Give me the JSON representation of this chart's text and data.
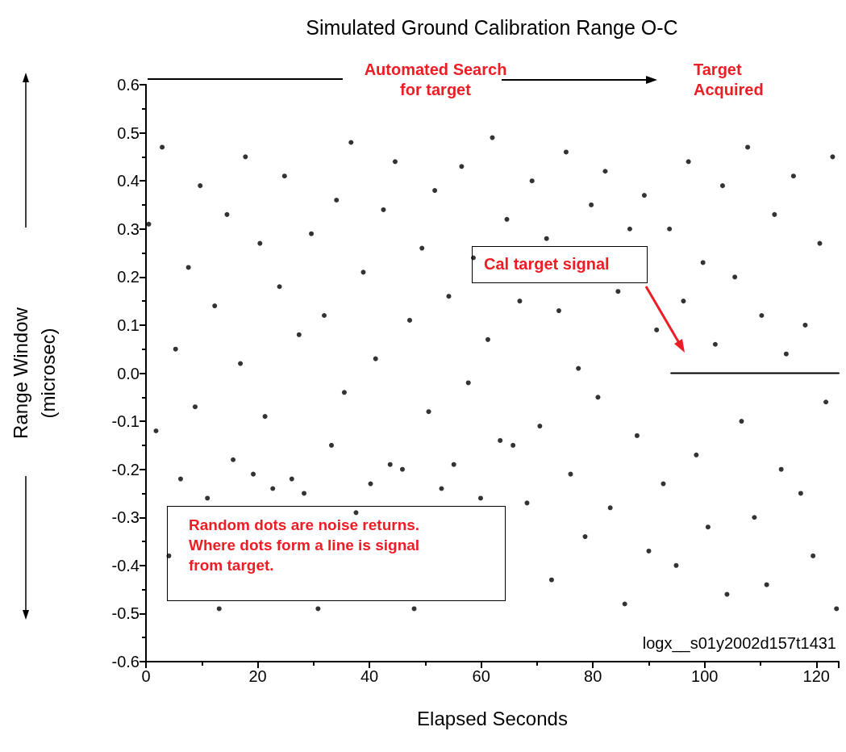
{
  "chart_data": {
    "type": "scatter",
    "title": "Simulated Ground Calibration Range O-C",
    "xlabel": "Elapsed Seconds",
    "ylabel": "Range Window\n(microsec)",
    "xlim": [
      0,
      124
    ],
    "xticks": [
      0,
      20,
      40,
      60,
      80,
      100,
      120
    ],
    "ylim": [
      -0.6,
      0.6
    ],
    "yticks": [
      -0.6,
      -0.5,
      -0.4,
      -0.3,
      -0.2,
      -0.1,
      {
        "value": 0,
        "label": "0.0"
      },
      0.1,
      0.2,
      0.3,
      0.4,
      0.5,
      0.6
    ],
    "line_style": "solid",
    "annotations": [
      "Automated Search for target",
      "Target Acquired",
      "Cal target signal",
      "Random dots are noise returns. Where dots form a line is signal from target.",
      "logx__s01y2002d157t1431"
    ],
    "series": [
      {
        "type": "scatter",
        "color": "#000000",
        "marker": "circle",
        "x": [
          0.5,
          1.8,
          2.9,
          4.1,
          5.3,
          6.2,
          7.6,
          8.8,
          9.7,
          11.0,
          12.3,
          13.1,
          14.5,
          15.6,
          16.9,
          17.8,
          19.2,
          20.4,
          21.3,
          22.7,
          23.9,
          24.8,
          26.1,
          27.4,
          28.3,
          29.6,
          30.8,
          31.9,
          33.2,
          34.1,
          35.5,
          36.7,
          37.6,
          38.9,
          40.2,
          41.1,
          42.5,
          43.7,
          44.6,
          45.9,
          47.2,
          48.0,
          49.4,
          50.6,
          51.7,
          52.9,
          54.2,
          55.1,
          56.5,
          57.7,
          58.6,
          59.9,
          61.2,
          62.0,
          63.4,
          64.6,
          65.7,
          66.9,
          68.2,
          69.1,
          70.5,
          71.7,
          72.6,
          73.9,
          75.2,
          76.0,
          77.4,
          78.6,
          79.7,
          80.9,
          82.2,
          83.1,
          84.5,
          85.7,
          86.6,
          87.9,
          89.2,
          90.0,
          91.4,
          92.6,
          93.7,
          94.9,
          96.2,
          97.1,
          98.5,
          99.7,
          100.6,
          101.9,
          103.2,
          104.0,
          105.4,
          106.6,
          107.7,
          108.9,
          110.2,
          111.1,
          112.5,
          113.7,
          114.6,
          115.9,
          117.2,
          118.0,
          119.4,
          120.6,
          121.7,
          122.9,
          123.6
        ],
        "values": [
          0.31,
          -0.12,
          0.47,
          -0.38,
          0.05,
          -0.22,
          0.22,
          -0.07,
          0.39,
          -0.26,
          0.14,
          -0.49,
          0.33,
          -0.18,
          0.02,
          0.45,
          -0.21,
          0.27,
          -0.09,
          -0.24,
          0.18,
          0.41,
          -0.22,
          0.08,
          -0.25,
          0.29,
          -0.49,
          0.12,
          -0.15,
          0.36,
          -0.04,
          0.48,
          -0.29,
          0.21,
          -0.23,
          0.03,
          0.34,
          -0.19,
          0.44,
          -0.2,
          0.11,
          -0.49,
          0.26,
          -0.08,
          0.38,
          -0.24,
          0.16,
          -0.19,
          0.43,
          -0.02,
          0.24,
          -0.26,
          0.07,
          0.49,
          -0.14,
          0.32,
          -0.15,
          0.15,
          -0.27,
          0.4,
          -0.11,
          0.28,
          -0.43,
          0.13,
          0.46,
          -0.21,
          0.01,
          -0.34,
          0.35,
          -0.05,
          0.42,
          -0.28,
          0.17,
          -0.48,
          0.3,
          -0.13,
          0.37,
          -0.37,
          0.09,
          -0.23,
          0.3,
          -0.4,
          0.15,
          0.44,
          -0.17,
          0.23,
          -0.32,
          0.06,
          0.39,
          -0.46,
          0.2,
          -0.1,
          0.47,
          -0.3,
          0.12,
          -0.44,
          0.33,
          -0.2,
          0.04,
          0.41,
          -0.25,
          0.1,
          -0.38,
          0.27,
          -0.06,
          0.45,
          -0.49
        ]
      },
      {
        "type": "line",
        "color": "#000000",
        "marker": "none",
        "x": [
          94,
          124
        ],
        "values": [
          0,
          0
        ]
      }
    ]
  }
}
